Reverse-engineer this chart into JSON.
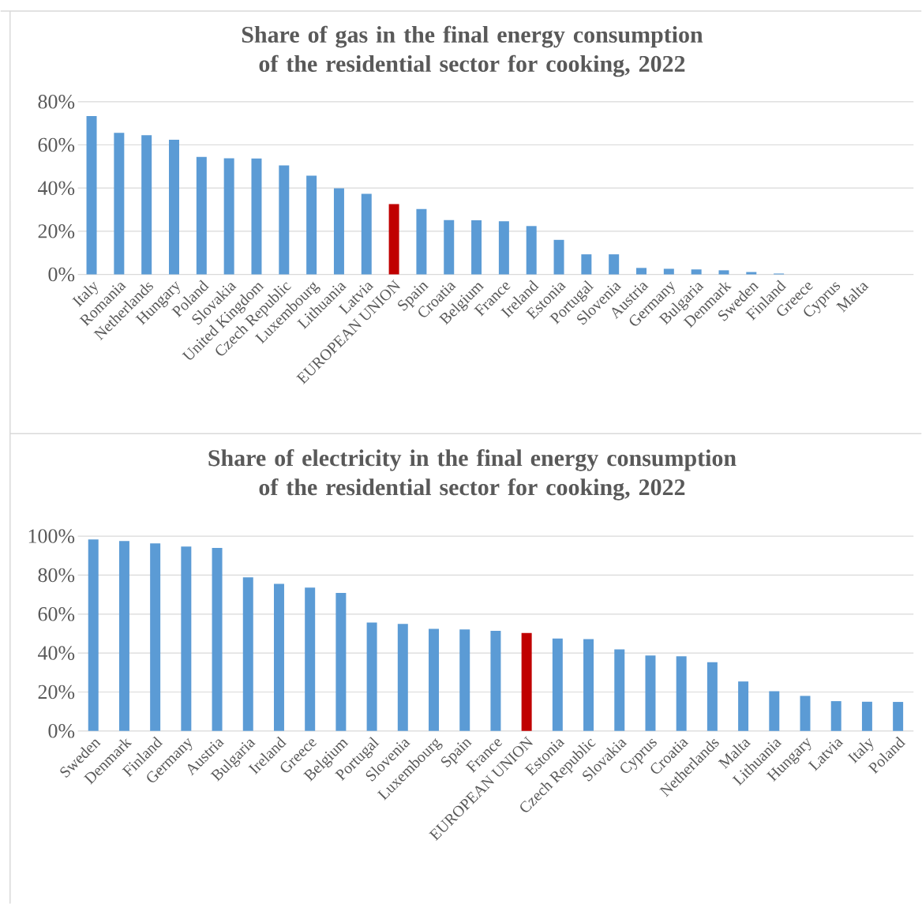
{
  "chart_data": [
    {
      "type": "bar",
      "title": "Share of gas in the final energy consumption of the residential sector for cooking, 2022",
      "categories": [
        "Italy",
        "Romania",
        "Netherlands",
        "Hungary",
        "Poland",
        "Slovakia",
        "United Kingdom",
        "Czech Republic",
        "Luxembourg",
        "Lithuania",
        "Latvia",
        "EUROPEAN UNION",
        "Spain",
        "Croatia",
        "Belgium",
        "France",
        "Ireland",
        "Estonia",
        "Portugal",
        "Slovenia",
        "Austria",
        "Germany",
        "Bulgaria",
        "Denmark",
        "Sweden",
        "Finland",
        "Greece",
        "Cyprus",
        "Malta"
      ],
      "values": [
        73.4,
        65.6,
        64.5,
        62.4,
        54.4,
        53.8,
        53.7,
        50.5,
        45.7,
        39.9,
        37.3,
        32.6,
        30.3,
        25.2,
        25.1,
        24.6,
        22.4,
        16,
        9.3,
        9.3,
        3,
        2.6,
        2.3,
        1.9,
        1.1,
        0.4,
        0,
        0,
        0
      ],
      "colors": [
        "#5b9bd5",
        "#5b9bd5",
        "#5b9bd5",
        "#5b9bd5",
        "#5b9bd5",
        "#5b9bd5",
        "#5b9bd5",
        "#5b9bd5",
        "#5b9bd5",
        "#5b9bd5",
        "#5b9bd5",
        "#c00000",
        "#5b9bd5",
        "#5b9bd5",
        "#5b9bd5",
        "#5b9bd5",
        "#5b9bd5",
        "#5b9bd5",
        "#5b9bd5",
        "#5b9bd5",
        "#5b9bd5",
        "#5b9bd5",
        "#5b9bd5",
        "#5b9bd5",
        "#5b9bd5",
        "#5b9bd5",
        "#5b9bd5",
        "#5b9bd5",
        "#5b9bd5"
      ],
      "ylim": [
        0,
        80
      ],
      "yticks": [
        {
          "value": 0,
          "label": "0%"
        },
        {
          "value": 20,
          "label": "20%"
        },
        {
          "value": 40,
          "label": "40%"
        },
        {
          "value": 60,
          "label": "60%"
        },
        {
          "value": 80,
          "label": "80%"
        }
      ],
      "grid": "y"
    },
    {
      "type": "bar",
      "title": "Share of electricity in the final energy consumption of the residential sector for cooking, 2022",
      "categories": [
        "Sweden",
        "Denmark",
        "Finland",
        "Germany",
        "Austria",
        "Bulgaria",
        "Ireland",
        "Greece",
        "Belgium",
        "Portugal",
        "Slovenia",
        "Luxembourg",
        "Spain",
        "France",
        "EUROPEAN UNION",
        "Estonia",
        "Czech Republic",
        "Slovakia",
        "Cyprus",
        "Croatia",
        "Netherlands",
        "Malta",
        "Lithuania",
        "Hungary",
        "Latvia",
        "Italy",
        "Poland"
      ],
      "values": [
        98.3,
        97.5,
        96.3,
        94.7,
        94.0,
        78.9,
        75.5,
        73.6,
        70.9,
        55.7,
        55.0,
        52.4,
        52.1,
        51.4,
        50.3,
        47.5,
        47.1,
        41.9,
        38.7,
        38.3,
        35.3,
        25.4,
        20.4,
        18.0,
        15.3,
        15.0,
        14.9
      ],
      "colors": [
        "#5b9bd5",
        "#5b9bd5",
        "#5b9bd5",
        "#5b9bd5",
        "#5b9bd5",
        "#5b9bd5",
        "#5b9bd5",
        "#5b9bd5",
        "#5b9bd5",
        "#5b9bd5",
        "#5b9bd5",
        "#5b9bd5",
        "#5b9bd5",
        "#5b9bd5",
        "#c00000",
        "#5b9bd5",
        "#5b9bd5",
        "#5b9bd5",
        "#5b9bd5",
        "#5b9bd5",
        "#5b9bd5",
        "#5b9bd5",
        "#5b9bd5",
        "#5b9bd5",
        "#5b9bd5",
        "#5b9bd5",
        "#5b9bd5"
      ],
      "ylim": [
        0,
        100
      ],
      "yticks": [
        {
          "value": 0,
          "label": "0%"
        },
        {
          "value": 20,
          "label": "20%"
        },
        {
          "value": 40,
          "label": "40%"
        },
        {
          "value": 60,
          "label": "60%"
        },
        {
          "value": 80,
          "label": "80%"
        },
        {
          "value": 100,
          "label": "100%"
        }
      ],
      "grid": "y"
    }
  ]
}
